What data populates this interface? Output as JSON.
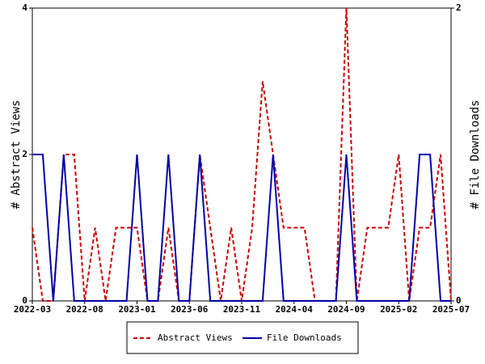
{
  "chart_data": {
    "type": "line",
    "y_label": "# Abstract Views",
    "y2_label": "# File Downloads",
    "categories": [
      "2022-03",
      null,
      null,
      null,
      null,
      "2022-08",
      null,
      null,
      null,
      null,
      "2023-01",
      null,
      null,
      null,
      null,
      "2023-06",
      null,
      null,
      null,
      null,
      "2023-11",
      null,
      null,
      null,
      null,
      "2024-04",
      null,
      null,
      null,
      null,
      "2024-09",
      null,
      null,
      null,
      null,
      "2025-02",
      null,
      null,
      null,
      null,
      "2025-07"
    ],
    "series": [
      {
        "name": "Abstract Views",
        "color": "#cc0000",
        "dash": true,
        "values": [
          1,
          0,
          0,
          2,
          2,
          0,
          1,
          0,
          1,
          1,
          1,
          0,
          0,
          1,
          0,
          0,
          2,
          1,
          0,
          1,
          0,
          1,
          3,
          2,
          1,
          1,
          1,
          0,
          0,
          0,
          4,
          0,
          1,
          1,
          1,
          2,
          0,
          1,
          1,
          2,
          0
        ]
      },
      {
        "name": "File Downloads",
        "color": "#0000aa",
        "axis": "y2",
        "values": [
          1,
          1,
          0,
          1,
          0,
          0,
          0,
          0,
          0,
          0,
          1,
          0,
          0,
          1,
          0,
          0,
          1,
          0,
          0,
          0,
          0,
          0,
          0,
          1,
          0,
          0,
          0,
          0,
          0,
          0,
          1,
          0,
          0,
          0,
          0,
          0,
          0,
          1,
          1,
          0,
          0
        ]
      }
    ],
    "ylim": [
      0,
      4
    ],
    "yticks": [
      0,
      2,
      4
    ],
    "y2lim": [
      0,
      2
    ],
    "y2ticks": [
      0,
      2
    ]
  }
}
